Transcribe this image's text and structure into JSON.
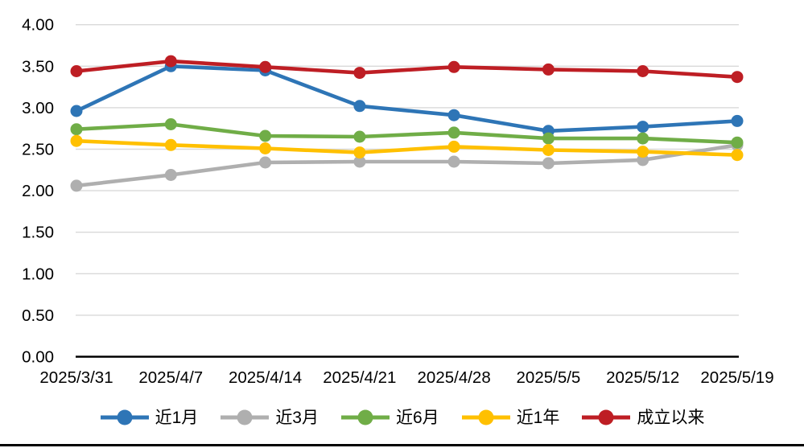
{
  "chart_data": {
    "type": "line",
    "title": "",
    "categories": [
      "2025/3/31",
      "2025/4/7",
      "2025/4/14",
      "2025/4/21",
      "2025/4/28",
      "2025/5/5",
      "2025/5/12",
      "2025/5/19"
    ],
    "series": [
      {
        "name": "近1月",
        "color": "#2E75B6",
        "values": [
          2.96,
          3.5,
          3.45,
          3.02,
          2.91,
          2.72,
          2.77,
          2.84
        ]
      },
      {
        "name": "近3月",
        "color": "#AFAFAF",
        "values": [
          2.06,
          2.19,
          2.34,
          2.35,
          2.35,
          2.33,
          2.37,
          2.55
        ]
      },
      {
        "name": "近6月",
        "color": "#70AD47",
        "values": [
          2.74,
          2.8,
          2.66,
          2.65,
          2.7,
          2.63,
          2.63,
          2.58
        ]
      },
      {
        "name": "近1年",
        "color": "#FFC000",
        "values": [
          2.6,
          2.55,
          2.51,
          2.46,
          2.53,
          2.49,
          2.47,
          2.43
        ]
      },
      {
        "name": "成立以来",
        "color": "#BE1E24",
        "values": [
          3.44,
          3.56,
          3.49,
          3.42,
          3.49,
          3.46,
          3.44,
          3.37
        ]
      }
    ],
    "xlabel": "",
    "ylabel": "",
    "y_axis": {
      "min": 0,
      "max": 4,
      "step": 0.5,
      "tick_labels": [
        "0.00",
        "0.50",
        "1.00",
        "1.50",
        "2.00",
        "2.50",
        "3.00",
        "3.50",
        "4.00"
      ]
    },
    "grid": true,
    "gridline_color": "#D9D9D9",
    "axis_line_color": "#000000",
    "tick_label_color": "#000000",
    "legend_position": "bottom",
    "marker": "circle"
  }
}
